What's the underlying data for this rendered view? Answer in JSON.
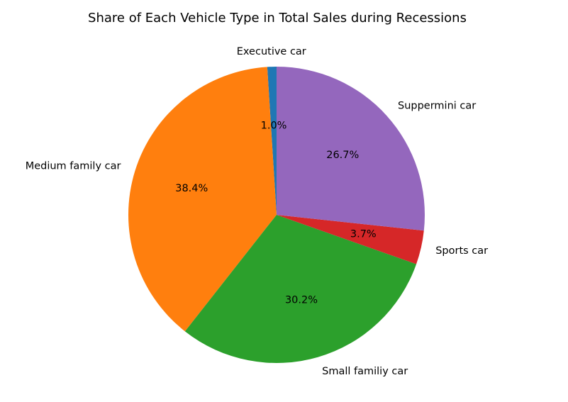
{
  "chart_data": {
    "type": "pie",
    "title": "Share of Each Vehicle Type in Total Sales during Recessions",
    "categories": [
      "Executive car",
      "Medium family car",
      "Small familiy car",
      "Sports car",
      "Suppermini car"
    ],
    "values": [
      1.0,
      38.4,
      30.2,
      3.7,
      26.7
    ],
    "percent_labels": [
      "1.0%",
      "38.4%",
      "30.2%",
      "3.7%",
      "26.7%"
    ],
    "colors": [
      "#1f77b4",
      "#ff7f0e",
      "#2ca02c",
      "#d62728",
      "#9467bd"
    ],
    "start_angle_deg": 90,
    "direction": "counterclockwise"
  }
}
